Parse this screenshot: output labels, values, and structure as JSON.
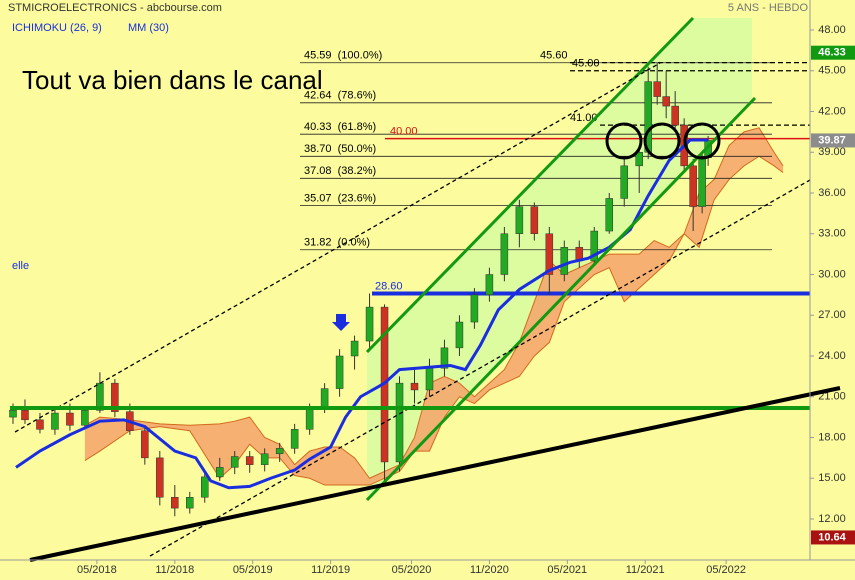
{
  "chart_data": {
    "type": "candlestick",
    "title": "STMICROELECTRONICS - abcbourse.com",
    "subtitle": "5 ANS - HEBDO",
    "annotation": "Tout va bien dans le canal",
    "side_label": "elle",
    "up_color": "#22aa22",
    "down_color": "#cc3322",
    "x": [
      1,
      5,
      10,
      15,
      20,
      25,
      30,
      35,
      40,
      45,
      50,
      55,
      60,
      65,
      70,
      75,
      80,
      85,
      90,
      95,
      100,
      105,
      110,
      115,
      120,
      125,
      130,
      135,
      140,
      145,
      150,
      155,
      160,
      165,
      170,
      175,
      180,
      185,
      190,
      195,
      200,
      205,
      210,
      213,
      216,
      219,
      222,
      225,
      228,
      231,
      233
    ],
    "open": [
      19.5,
      20,
      19.3,
      18.6,
      19.8,
      18.9,
      20,
      22,
      19.9,
      18.5,
      16.5,
      13.6,
      12.8,
      13.6,
      15.1,
      15.8,
      16.6,
      16,
      16.8,
      17.2,
      18.6,
      20.1,
      21.6,
      24,
      25.1,
      27.6,
      16.2,
      22,
      21.5,
      23.1,
      24.6,
      26.5,
      28.5,
      30,
      33,
      35,
      33,
      30,
      32,
      31,
      33.2,
      35.6,
      38,
      39,
      44.2,
      43.1,
      42.4,
      41,
      38,
      35,
      38.6
    ],
    "high": [
      20.5,
      20.8,
      19.8,
      20.2,
      20.5,
      20.3,
      22.8,
      22.3,
      20.5,
      18.9,
      17,
      14.5,
      14,
      15.5,
      16.5,
      17,
      17,
      17.2,
      17.6,
      19,
      20.5,
      22,
      24.5,
      25.5,
      28.6,
      27.8,
      22.5,
      23,
      23.8,
      25.2,
      27,
      29,
      30.5,
      33.5,
      35.5,
      35.3,
      33.5,
      32.5,
      32.5,
      33.5,
      36,
      38.5,
      39.5,
      45.3,
      45.6,
      45,
      43.5,
      41.5,
      38.5,
      39,
      40.2
    ],
    "low": [
      19,
      19,
      18.3,
      18.2,
      18.5,
      18.6,
      19.8,
      19.5,
      18.2,
      16,
      13,
      12.2,
      12.4,
      13.2,
      14.8,
      15.3,
      15.4,
      15.5,
      16.2,
      16.8,
      18.2,
      19.8,
      21,
      23,
      24.5,
      14.8,
      15.5,
      20.5,
      21,
      22.5,
      24,
      26,
      28,
      29.5,
      32,
      32.5,
      28.5,
      29.5,
      30.5,
      30.8,
      33,
      35,
      36,
      38.5,
      42.5,
      41.5,
      40.5,
      37.5,
      33.2,
      34.5,
      38
    ],
    "close": [
      20,
      19.3,
      18.6,
      19.8,
      18.9,
      20,
      22,
      19.9,
      18.5,
      16.5,
      13.6,
      12.8,
      13.6,
      15.1,
      15.8,
      16.6,
      16,
      16.8,
      17.2,
      18.6,
      20.1,
      21.6,
      24,
      25.1,
      27.6,
      16.2,
      22,
      21.5,
      23.1,
      24.6,
      26.5,
      28.5,
      30,
      33,
      35,
      33,
      30,
      32,
      31,
      33.2,
      35.6,
      38,
      39,
      44.2,
      43.1,
      42.4,
      41,
      38,
      35,
      38.6,
      39.87
    ],
    "ma": {
      "name": "MM (30)",
      "color": "#1a2ee0",
      "x": [
        2,
        10,
        20,
        30,
        38,
        45,
        55,
        62,
        67,
        73,
        80,
        87,
        95,
        100,
        107,
        112,
        117,
        125,
        130,
        147,
        152,
        157,
        163,
        170,
        180,
        187,
        193,
        200,
        207,
        213,
        220,
        227,
        233
      ],
      "values": [
        15.8,
        17,
        18.2,
        19.2,
        19.3,
        18.8,
        17,
        16.5,
        14.8,
        14.3,
        14.4,
        15,
        15.6,
        16.4,
        17.3,
        19.5,
        21,
        22,
        23,
        23.3,
        23,
        24.8,
        27.4,
        28.9,
        30.3,
        30.9,
        31.2,
        32,
        33.3,
        35.8,
        38.4,
        39.9,
        39.9
      ]
    },
    "ichimoku": {
      "name": "ICHIMOKU (26, 9)",
      "color": "#f4a36a",
      "edge": "#d2691e",
      "x": [
        25,
        30,
        40,
        50,
        60,
        70,
        75,
        80,
        85,
        90,
        95,
        100,
        105,
        110,
        115,
        120,
        125,
        130,
        135,
        140,
        145,
        150,
        155,
        160,
        165,
        170,
        175,
        180,
        185,
        190,
        195,
        200,
        205,
        210,
        215,
        220,
        225,
        230,
        235,
        240,
        245,
        250,
        255,
        258
      ],
      "upper": [
        18.9,
        19.5,
        19.3,
        19,
        18.9,
        19,
        19.2,
        19.5,
        18,
        17.5,
        16,
        17,
        17.3,
        17.3,
        16.5,
        15,
        15.5,
        16,
        18,
        22,
        22.5,
        22,
        21,
        22,
        23,
        25,
        28,
        31,
        30,
        30.5,
        31,
        31.5,
        31.5,
        31.5,
        32.5,
        32,
        33,
        36,
        37,
        39.5,
        40.5,
        40.8,
        39,
        38
      ],
      "lower": [
        16.3,
        17,
        18.5,
        18.8,
        18.5,
        15,
        16,
        17.5,
        16.5,
        16.5,
        15.2,
        15,
        14.5,
        14.5,
        14.5,
        14.5,
        15,
        15.5,
        17,
        17,
        19.5,
        21,
        20.5,
        21.5,
        22,
        22.5,
        24,
        25,
        28,
        29,
        30,
        30.5,
        28,
        29,
        30,
        31,
        33,
        32,
        35.5,
        37,
        38,
        38.7,
        38,
        37.5
      ]
    },
    "fib_levels": [
      {
        "value": 45.59,
        "label": "45.59  (100.0%)"
      },
      {
        "value": 42.64,
        "label": "42.64  (78.6%)"
      },
      {
        "value": 40.33,
        "label": "40.33  (61.8%)"
      },
      {
        "value": 38.7,
        "label": "38.70  (50.0%)"
      },
      {
        "value": 37.08,
        "label": "37.08  (38.2%)"
      },
      {
        "value": 35.07,
        "label": "35.07  (23.6%)"
      },
      {
        "value": 31.82,
        "label": "31.82  (0.0%)"
      }
    ],
    "levels": [
      {
        "value": 45.6,
        "label": "45.60",
        "color": "#000000",
        "style": "dashed"
      },
      {
        "value": 45,
        "label": "45.00",
        "color": "#000000",
        "style": "dashed"
      },
      {
        "value": 41,
        "label": "41.00",
        "color": "#000000",
        "style": "dashed"
      },
      {
        "value": 40,
        "label": "40.00",
        "color": "#dd1111",
        "style": "solid"
      },
      {
        "value": 28.6,
        "label": "28.60",
        "color": "#1a2ee0",
        "style": "thick"
      }
    ],
    "price_badges": [
      {
        "value": 46.33,
        "color": "#119911"
      },
      {
        "value": 39.87,
        "color": "#8c8c8c"
      },
      {
        "value": 10.64,
        "color": "#aa1111"
      }
    ],
    "xlim": [
      0,
      267
    ],
    "xticks": [
      {
        "value": 29,
        "label": "05/2018"
      },
      {
        "value": 55,
        "label": "11/2018"
      },
      {
        "value": 81,
        "label": "05/2019"
      },
      {
        "value": 107,
        "label": "11/2019"
      },
      {
        "value": 134,
        "label": "05/2020"
      },
      {
        "value": 160,
        "label": "11/2020"
      },
      {
        "value": 186,
        "label": "05/2021"
      },
      {
        "value": 212,
        "label": "11/2021"
      },
      {
        "value": 239,
        "label": "05/2022"
      }
    ],
    "ylim": [
      8.98,
      50.21
    ],
    "yticks": [
      {
        "value": 12,
        "label": "12.00"
      },
      {
        "value": 15,
        "label": "15.00"
      },
      {
        "value": 18,
        "label": "18.00"
      },
      {
        "value": 21,
        "label": "21.00"
      },
      {
        "value": 24,
        "label": "24.00"
      },
      {
        "value": 27,
        "label": "27.00"
      },
      {
        "value": 30,
        "label": "30.00"
      },
      {
        "value": 33,
        "label": "33.00"
      },
      {
        "value": 36,
        "label": "36.00"
      },
      {
        "value": 39,
        "label": "39.00"
      },
      {
        "value": 42,
        "label": "42.00"
      },
      {
        "value": 45,
        "label": "45.00"
      },
      {
        "value": 48,
        "label": "48.00"
      }
    ]
  }
}
